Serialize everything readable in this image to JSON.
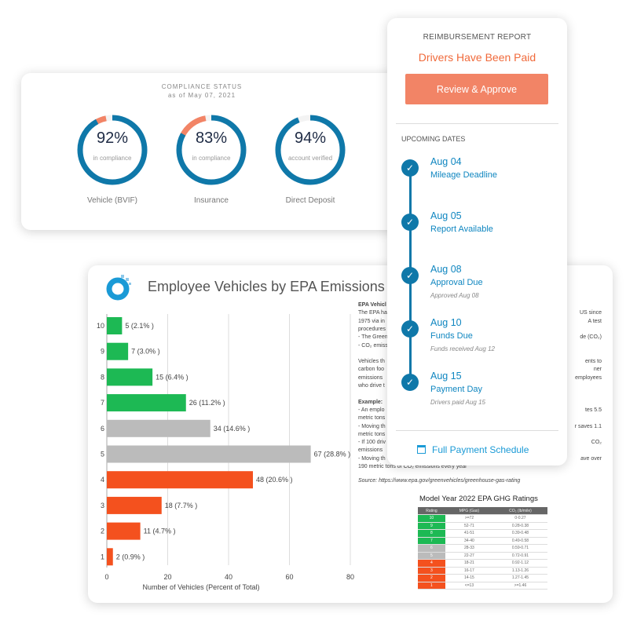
{
  "compliance": {
    "title": "COMPLIANCE STATUS",
    "date": "as of May 07, 2021",
    "items": [
      {
        "percent": "92%",
        "value": 92,
        "sub": "in compliance",
        "label": "Vehicle (BVIF)"
      },
      {
        "percent": "83%",
        "value": 83,
        "sub": "in compliance",
        "label": "Insurance"
      },
      {
        "percent": "94%",
        "value": 94,
        "sub": "account verified",
        "label": "Direct Deposit"
      }
    ]
  },
  "reimbursement": {
    "title": "REIMBURSEMENT REPORT",
    "status": "Drivers Have Been Paid",
    "button": "Review & Approve",
    "upcoming": "UPCOMING DATES",
    "steps": [
      {
        "date": "Aug 04",
        "title": "Mileage Deadline",
        "note": ""
      },
      {
        "date": "Aug 05",
        "title": "Report Available",
        "note": ""
      },
      {
        "date": "Aug 08",
        "title": "Approval Due",
        "note": "Approved Aug 08"
      },
      {
        "date": "Aug 10",
        "title": "Funds Due",
        "note": "Funds received Aug 12"
      },
      {
        "date": "Aug 15",
        "title": "Payment Day",
        "note": "Drivers paid Aug 15"
      }
    ],
    "schedule_link": "Full Payment Schedule"
  },
  "chart_data": {
    "type": "bar",
    "title": "Employee Vehicles by EPA Emissions Ra",
    "categories": [
      "10",
      "9",
      "8",
      "7",
      "6",
      "5",
      "4",
      "3",
      "2",
      "1"
    ],
    "values": [
      5,
      7,
      15,
      26,
      34,
      67,
      48,
      18,
      11,
      2
    ],
    "labels": [
      "5 (2.1% )",
      "7 (3.0% )",
      "15 (6.4% )",
      "26 (11.2% )",
      "34 (14.6% )",
      "67 (28.8% )",
      "48 (20.6% )",
      "18 (7.7% )",
      "11 (4.7% )",
      "2 (0.9% )"
    ],
    "colors": [
      "#1db954",
      "#1db954",
      "#1db954",
      "#1db954",
      "#bbbbbb",
      "#bbbbbb",
      "#f4511e",
      "#f4511e",
      "#f4511e",
      "#f4511e"
    ],
    "xlabel": "Number of Vehicles (Percent of Total)",
    "xlim": [
      0,
      80
    ],
    "xticks": [
      "0",
      "20",
      "40",
      "60",
      "80"
    ],
    "grid": true
  },
  "epa_text": {
    "left": [
      "EPA Vehicl",
      "The EPA ha",
      "1975 via in",
      "procedures",
      "- The Green",
      "- CO₂ emiss",
      "",
      "Vehicles th",
      "carbon foo",
      "emissions",
      "who drive t",
      "",
      "Example:",
      "- An emplo",
      "metric tons",
      "- Moving th",
      "metric tons",
      "- If 100 driv",
      "emissions",
      "- Moving th",
      "190 metric tons of CO₂ emissions every year"
    ],
    "right": [
      "",
      "US since",
      "A test",
      "",
      "de (CO₂)",
      "",
      "",
      "ents to",
      "ner",
      "employees",
      "",
      "",
      "",
      "tes 5.5",
      "",
      "r saves 1.1",
      "",
      "CO₂",
      "",
      "ave over",
      ""
    ],
    "source": "Source: https://www.epa.gov/greenvehicles/greenhouse-gas-rating"
  },
  "ghg_table": {
    "title": "Model Year 2022 EPA GHG Ratings",
    "headers": [
      "Rating",
      "MPG (Gas)",
      "CO₂ (lb/mile)"
    ],
    "rows": [
      [
        "10",
        ">=72",
        "0-0.27"
      ],
      [
        "9",
        "52-71",
        "0.28-0.38"
      ],
      [
        "8",
        "41-51",
        "0.39-0.48"
      ],
      [
        "7",
        "34-40",
        "0.49-0.58"
      ],
      [
        "6",
        "28-33",
        "0.59-0.71"
      ],
      [
        "5",
        "22-27",
        "0.72-0.91"
      ],
      [
        "4",
        "18-21",
        "0.92-1.12"
      ],
      [
        "3",
        "16-17",
        "1.13-1.26"
      ],
      [
        "2",
        "14-15",
        "1.27-1.45"
      ],
      [
        "1",
        "<=13",
        ">=1.46"
      ]
    ],
    "colors": [
      "#1db954",
      "#1db954",
      "#1db954",
      "#1db954",
      "#bbbbbb",
      "#bbbbbb",
      "#f4511e",
      "#f4511e",
      "#f4511e",
      "#f4511e"
    ]
  }
}
